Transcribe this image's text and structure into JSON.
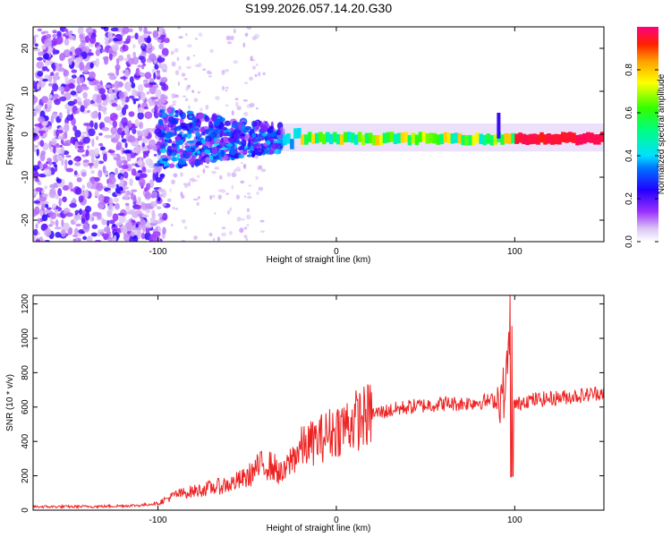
{
  "figure": {
    "title": "S199.2026.057.14.20.G30"
  },
  "chart_data": [
    {
      "type": "heatmap",
      "name": "spectrogram",
      "xlabel": "Height of straight line (km)",
      "ylabel": "Frequency (Hz)",
      "xlim": [
        -170,
        150
      ],
      "ylim": [
        -25,
        25
      ],
      "xticks": [
        -100,
        0,
        100
      ],
      "yticks": [
        -20,
        -10,
        0,
        10,
        20
      ],
      "colorbar": {
        "label": "Normalized spectral amplitude",
        "range": [
          0,
          1
        ],
        "ticks": [
          0.0,
          0.2,
          0.4,
          0.6,
          0.8
        ],
        "tick_labels": [
          "0.0",
          "0.2",
          "0.4",
          "0.6",
          "0.8"
        ]
      },
      "features": {
        "scattered_noise_x": [
          -170,
          -100
        ],
        "fragmented_band_x": [
          -100,
          -30
        ],
        "narrow_band_x": [
          -30,
          150
        ],
        "narrow_band_freq_hz": -1,
        "spike_x_km": 91
      }
    },
    {
      "type": "line",
      "name": "snr",
      "xlabel": "Height of straight line (km)",
      "ylabel": "SNR (10 * v/v)",
      "xlim": [
        -170,
        150
      ],
      "ylim": [
        0,
        1250
      ],
      "xticks": [
        -100,
        0,
        100
      ],
      "yticks": [
        0,
        200,
        400,
        600,
        800,
        1000,
        1200
      ],
      "color": "#ee2222",
      "series": [
        {
          "name": "SNR",
          "x": [
            -170,
            -150,
            -130,
            -110,
            -100,
            -90,
            -80,
            -70,
            -60,
            -50,
            -45,
            -40,
            -35,
            -30,
            -25,
            -20,
            -10,
            0,
            10,
            20,
            30,
            40,
            50,
            60,
            70,
            80,
            90,
            95,
            98,
            100,
            105,
            110,
            120,
            130,
            140,
            150
          ],
          "values": [
            20,
            20,
            22,
            28,
            40,
            90,
            110,
            130,
            150,
            190,
            240,
            270,
            250,
            200,
            300,
            360,
            410,
            470,
            520,
            560,
            580,
            600,
            610,
            620,
            620,
            630,
            640,
            700,
            1220,
            600,
            640,
            640,
            650,
            660,
            670,
            690
          ]
        }
      ]
    }
  ]
}
